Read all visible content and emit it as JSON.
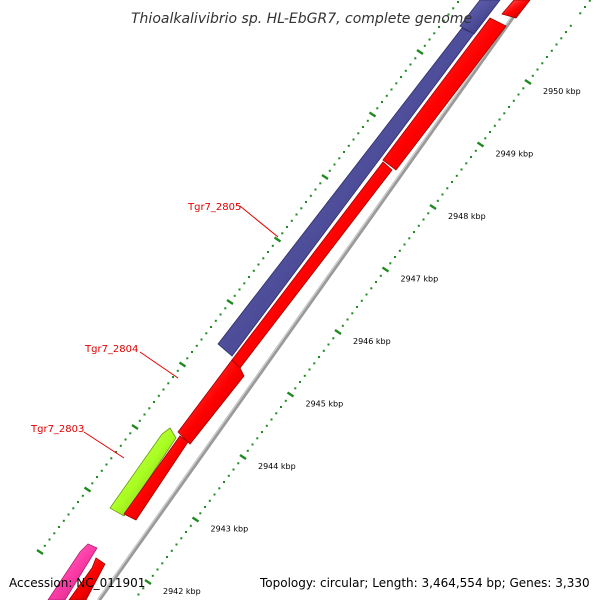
{
  "title": "Thioalkalivibrio sp. HL-EbGR7, complete genome",
  "footer": {
    "accession": "Accession: NC_011901",
    "topology": "Topology: circular; Length: 3,464,554 bp; Genes: 3,330"
  },
  "colors": {
    "backbone": "#b4b4b4",
    "forward_gene": "#4d4d9a",
    "reverse_gene": "#ff0000",
    "highlight_gene": "#aaff22",
    "other_gene": "#ff3ca8",
    "ticks": "#1f8a1f",
    "label_text": "#e00000"
  },
  "ticks": [
    {
      "label": "2942 kbp"
    },
    {
      "label": "2943 kbp"
    },
    {
      "label": "2944 kbp"
    },
    {
      "label": "2945 kbp"
    },
    {
      "label": "2946 kbp"
    },
    {
      "label": "2947 kbp"
    },
    {
      "label": "2948 kbp"
    },
    {
      "label": "2949 kbp"
    },
    {
      "label": "2950 kbp"
    }
  ],
  "gene_labels": [
    {
      "name": "Tgr7_2805"
    },
    {
      "name": "Tgr7_2804"
    },
    {
      "name": "Tgr7_2803"
    }
  ]
}
